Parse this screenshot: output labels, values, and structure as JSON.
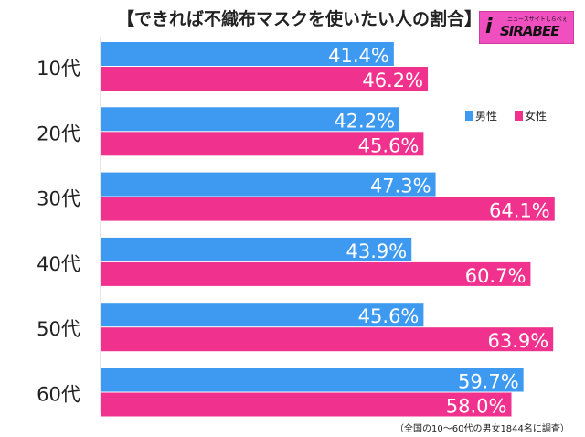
{
  "title": "【できれば不織布マスクを使いたい人の割合】",
  "logo": {
    "text": "SIRABEE",
    "subtext": "ニュースサイトしらべぇ"
  },
  "note": "（全国の10～60代の男女1844名に調査）",
  "chart_data": {
    "type": "bar",
    "orientation": "horizontal",
    "title": "【できれば不織布マスクを使いたい人の割合】",
    "categories": [
      "10代",
      "20代",
      "30代",
      "40代",
      "50代",
      "60代"
    ],
    "series": [
      {
        "name": "男性",
        "color": "#3d9af0",
        "values": [
          41.4,
          42.2,
          47.3,
          43.9,
          45.6,
          59.7
        ]
      },
      {
        "name": "女性",
        "color": "#f0318e",
        "values": [
          46.2,
          45.6,
          64.1,
          60.7,
          63.9,
          58.0
        ]
      }
    ],
    "value_format": "percent_1dp",
    "legend": "right",
    "grid": false
  }
}
